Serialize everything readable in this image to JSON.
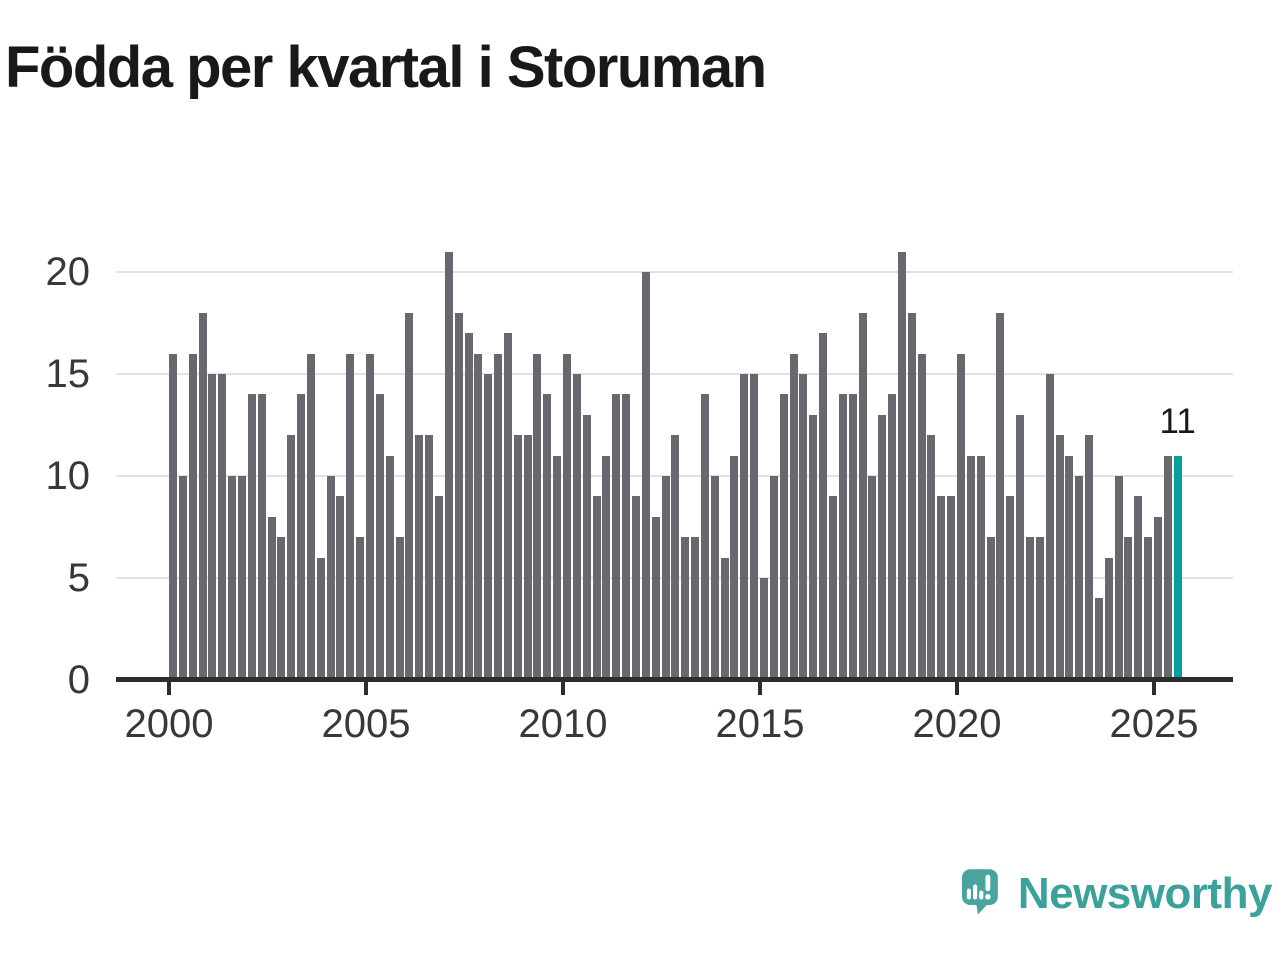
{
  "title": "Födda per kvartal i Storuman",
  "annotation": {
    "label": "11"
  },
  "logo": {
    "brand": "Newsworthy"
  },
  "colors": {
    "bar": "#68686f",
    "highlight": "#04a199",
    "axis": "#2d2d2d",
    "grid": "#e2e2e2",
    "tick_label": "#383838",
    "title": "#191919",
    "logo_teal": "#49a4a0",
    "logo_text": "#3aa19b"
  },
  "chart_data": {
    "type": "bar",
    "title": "Födda per kvartal i Storuman",
    "frequency": "quarterly",
    "x_start_year": 2000,
    "x_start_quarter": 1,
    "x_end_year": 2025,
    "x_end_quarter": 3,
    "values": [
      16,
      10,
      16,
      18,
      15,
      15,
      10,
      10,
      14,
      14,
      8,
      7,
      12,
      14,
      16,
      6,
      10,
      9,
      16,
      7,
      16,
      14,
      11,
      7,
      18,
      12,
      12,
      9,
      21,
      18,
      17,
      16,
      15,
      16,
      17,
      12,
      12,
      16,
      14,
      11,
      16,
      15,
      13,
      9,
      11,
      14,
      14,
      9,
      20,
      8,
      10,
      12,
      7,
      7,
      14,
      10,
      6,
      11,
      15,
      15,
      5,
      10,
      14,
      16,
      15,
      13,
      17,
      9,
      14,
      14,
      18,
      10,
      13,
      14,
      21,
      18,
      16,
      12,
      9,
      9,
      16,
      11,
      11,
      7,
      18,
      9,
      13,
      7,
      7,
      15,
      12,
      11,
      10,
      12,
      4,
      6,
      10,
      7,
      9,
      7,
      8,
      11,
      11
    ],
    "highlight_last": true,
    "highlight_last_label": "11",
    "yticks": [
      0,
      5,
      10,
      15,
      20
    ],
    "xticks": [
      2000,
      2005,
      2010,
      2015,
      2020,
      2025
    ],
    "ylim": [
      0,
      21
    ],
    "grid": "horizontal",
    "legend": "none"
  }
}
